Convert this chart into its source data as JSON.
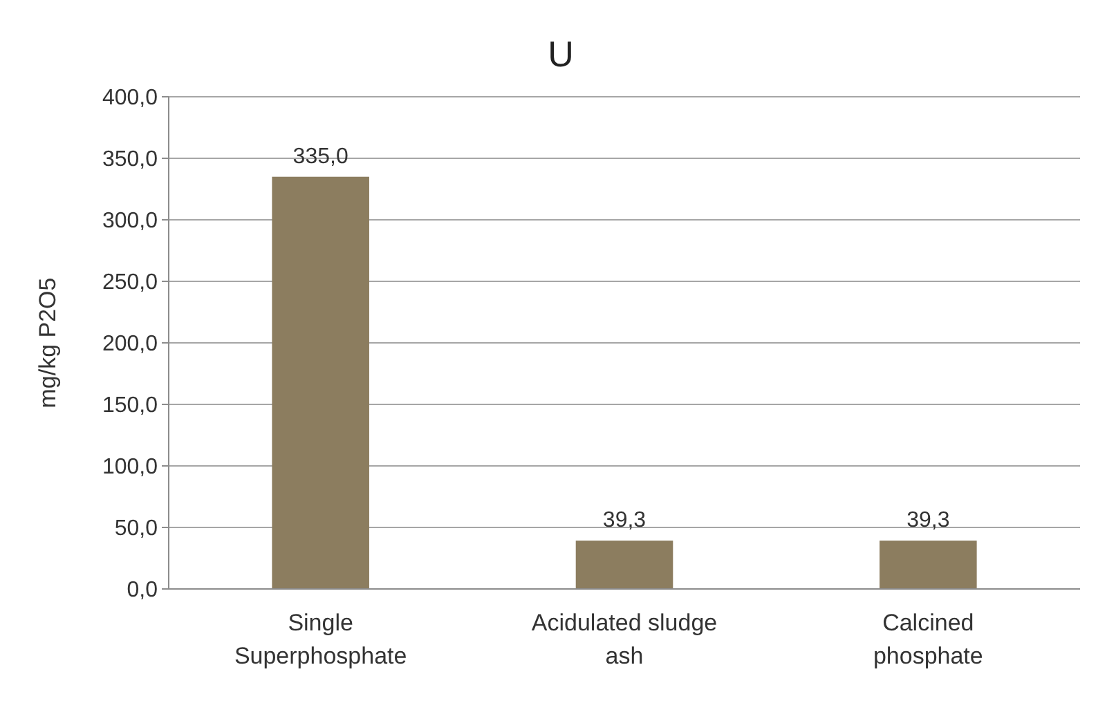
{
  "chart_data": {
    "type": "bar",
    "title": "U",
    "ylabel": "mg/kg P2O5",
    "categories": [
      "Single Superphosphate",
      "Acidulated sludge ash",
      "Calcined phosphate"
    ],
    "values": [
      335.0,
      39.3,
      39.3
    ],
    "color": "#8c7d5f",
    "value_labels": [
      "335,0",
      "39,3",
      "39,3"
    ],
    "ylim": [
      0,
      400
    ],
    "yticks": [
      {
        "value": 0,
        "label": "0,0"
      },
      {
        "value": 50,
        "label": "50,0"
      },
      {
        "value": 100,
        "label": "100,0"
      },
      {
        "value": 150,
        "label": "150,0"
      },
      {
        "value": 200,
        "label": "200,0"
      },
      {
        "value": 250,
        "label": "250,0"
      },
      {
        "value": 300,
        "label": "300,0"
      },
      {
        "value": 350,
        "label": "350,0"
      },
      {
        "value": 400,
        "label": "400,0"
      }
    ],
    "grid": "y"
  }
}
